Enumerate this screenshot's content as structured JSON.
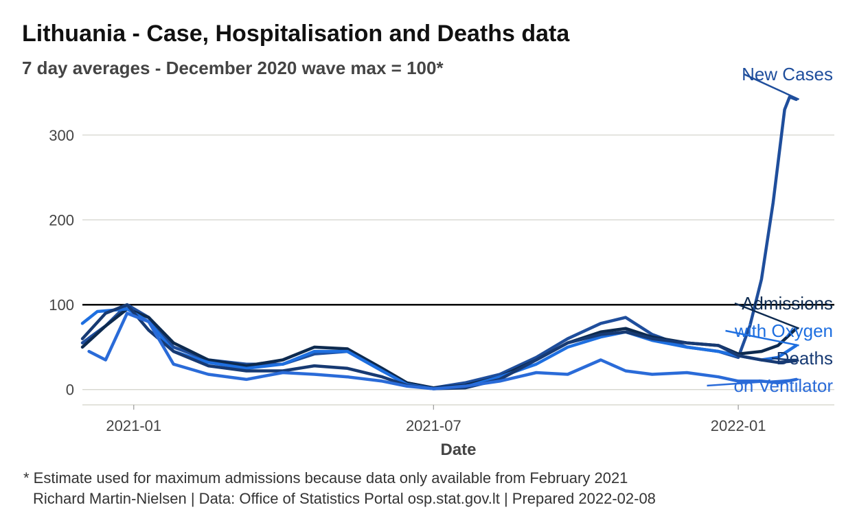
{
  "title": "Lithuania - Case, Hospitalisation and Deaths data",
  "subtitle": "7 day averages - December 2020 wave max = 100*",
  "caption": {
    "line1": "* Estimate used for maximum admissions because data only available from February 2021",
    "line2": "Richard Martin-Nielsen | Data: Office of Statistics Portal osp.stat.gov.lt | Prepared 2022-02-08"
  },
  "chart_data": {
    "type": "line",
    "xlabel": "Date",
    "ylabel": "",
    "xlim": [
      "2020-12-01",
      "2022-02-28"
    ],
    "ylim": [
      -18,
      350
    ],
    "x_ticks": [
      "2021-01",
      "2021-07",
      "2022-01"
    ],
    "y_ticks": [
      0,
      100,
      200,
      300
    ],
    "grid": true,
    "reference_line": 100,
    "legend": "direct labels at line ends (right)",
    "series": [
      {
        "name": "New Cases",
        "color": "#1f4e9c",
        "x": [
          "2020-12-01",
          "2020-12-15",
          "2020-12-28",
          "2021-01-10",
          "2021-01-25",
          "2021-02-15",
          "2021-03-10",
          "2021-04-01",
          "2021-04-20",
          "2021-05-10",
          "2021-05-31",
          "2021-06-15",
          "2021-07-01",
          "2021-07-20",
          "2021-08-10",
          "2021-09-01",
          "2021-09-20",
          "2021-10-10",
          "2021-10-25",
          "2021-11-10",
          "2021-12-01",
          "2021-12-20",
          "2022-01-01",
          "2022-01-08",
          "2022-01-15",
          "2022-01-22",
          "2022-01-29",
          "2022-02-01",
          "2022-02-05"
        ],
        "values": [
          55,
          75,
          100,
          85,
          50,
          35,
          30,
          30,
          42,
          45,
          22,
          8,
          2,
          8,
          18,
          38,
          60,
          78,
          85,
          65,
          50,
          45,
          38,
          75,
          130,
          220,
          330,
          345,
          342
        ]
      },
      {
        "name": "Admissions",
        "color": "#0d2a4f",
        "x": [
          "2020-12-01",
          "2020-12-15",
          "2020-12-28",
          "2021-01-10",
          "2021-01-25",
          "2021-02-15",
          "2021-03-10",
          "2021-04-01",
          "2021-04-20",
          "2021-05-10",
          "2021-05-31",
          "2021-06-15",
          "2021-07-01",
          "2021-07-20",
          "2021-08-10",
          "2021-09-01",
          "2021-09-20",
          "2021-10-10",
          "2021-10-25",
          "2021-11-10",
          "2021-12-01",
          "2021-12-20",
          "2022-01-01",
          "2022-01-15",
          "2022-01-25",
          "2022-02-05"
        ],
        "values": [
          50,
          75,
          95,
          85,
          55,
          35,
          28,
          35,
          50,
          48,
          25,
          8,
          2,
          5,
          15,
          35,
          55,
          68,
          72,
          62,
          55,
          52,
          42,
          45,
          52,
          72
        ]
      },
      {
        "name": "with Oxygen",
        "color": "#1e6fe0",
        "x": [
          "2020-12-01",
          "2020-12-10",
          "2020-12-28",
          "2021-01-10",
          "2021-01-25",
          "2021-02-15",
          "2021-03-10",
          "2021-04-01",
          "2021-04-20",
          "2021-05-10",
          "2021-05-31",
          "2021-06-15",
          "2021-07-01",
          "2021-07-20",
          "2021-08-10",
          "2021-09-01",
          "2021-09-20",
          "2021-10-10",
          "2021-10-25",
          "2021-11-10",
          "2021-12-01",
          "2021-12-20",
          "2022-01-01",
          "2022-01-15",
          "2022-01-25",
          "2022-02-05"
        ],
        "values": [
          78,
          92,
          95,
          80,
          45,
          32,
          25,
          30,
          45,
          45,
          22,
          6,
          1,
          3,
          15,
          30,
          50,
          62,
          68,
          58,
          50,
          45,
          40,
          35,
          38,
          52
        ]
      },
      {
        "name": "Deaths",
        "color": "#173a73",
        "x": [
          "2020-12-01",
          "2020-12-15",
          "2020-12-28",
          "2021-01-10",
          "2021-01-25",
          "2021-02-15",
          "2021-03-10",
          "2021-04-01",
          "2021-04-20",
          "2021-05-10",
          "2021-05-31",
          "2021-06-15",
          "2021-07-01",
          "2021-07-20",
          "2021-08-10",
          "2021-09-01",
          "2021-09-20",
          "2021-10-10",
          "2021-10-25",
          "2021-11-10",
          "2021-12-01",
          "2021-12-20",
          "2022-01-01",
          "2022-01-15",
          "2022-01-25",
          "2022-02-05"
        ],
        "values": [
          60,
          90,
          100,
          70,
          45,
          28,
          22,
          22,
          28,
          25,
          15,
          5,
          1,
          2,
          12,
          35,
          55,
          65,
          68,
          60,
          55,
          52,
          40,
          35,
          32,
          34
        ]
      },
      {
        "name": "on Ventilator",
        "color": "#2a6bd8",
        "x": [
          "2020-12-05",
          "2020-12-15",
          "2020-12-28",
          "2021-01-10",
          "2021-01-25",
          "2021-02-15",
          "2021-03-10",
          "2021-04-01",
          "2021-04-20",
          "2021-05-10",
          "2021-05-31",
          "2021-06-15",
          "2021-07-01",
          "2021-07-20",
          "2021-08-10",
          "2021-09-01",
          "2021-09-20",
          "2021-10-10",
          "2021-10-25",
          "2021-11-10",
          "2021-12-01",
          "2021-12-20",
          "2022-01-01",
          "2022-01-15",
          "2022-01-25",
          "2022-02-05"
        ],
        "values": [
          45,
          35,
          90,
          80,
          30,
          18,
          12,
          20,
          18,
          15,
          10,
          4,
          1,
          4,
          10,
          20,
          18,
          35,
          22,
          18,
          20,
          15,
          10,
          10,
          8,
          12
        ]
      }
    ]
  }
}
